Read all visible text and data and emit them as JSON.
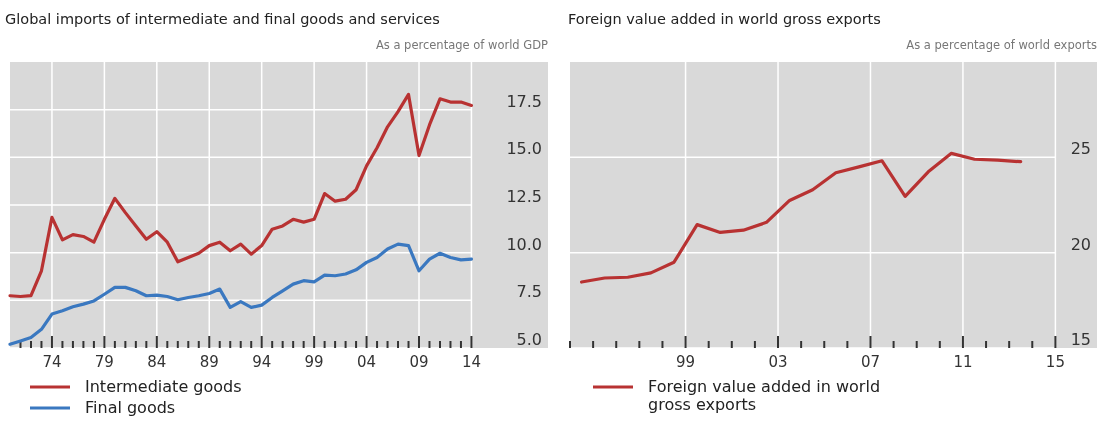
{
  "chart_data": [
    {
      "type": "line",
      "title": "Global imports of intermediate and final goods and services",
      "subtitle": "As a percentage of world GDP",
      "x": [
        1970,
        1971,
        1972,
        1973,
        1974,
        1975,
        1976,
        1977,
        1978,
        1979,
        1980,
        1981,
        1982,
        1983,
        1984,
        1985,
        1986,
        1987,
        1988,
        1989,
        1990,
        1991,
        1992,
        1993,
        1994,
        1995,
        1996,
        1997,
        1998,
        1999,
        2000,
        2001,
        2002,
        2003,
        2004,
        2005,
        2006,
        2007,
        2008,
        2009,
        2010,
        2011,
        2012,
        2013,
        2014
      ],
      "series": [
        {
          "name": "Intermediate goods",
          "color": "#b83232",
          "values": [
            7.74,
            7.7,
            7.75,
            9.05,
            11.85,
            10.67,
            10.95,
            10.85,
            10.55,
            11.75,
            12.85,
            12.1,
            11.4,
            10.7,
            11.1,
            10.55,
            9.52,
            9.75,
            9.97,
            10.37,
            10.55,
            10.1,
            10.45,
            9.92,
            10.37,
            11.23,
            11.4,
            11.75,
            11.6,
            11.75,
            13.1,
            12.7,
            12.8,
            13.3,
            14.55,
            15.5,
            16.6,
            17.4,
            18.3,
            15.1,
            16.7,
            18.07,
            17.9,
            17.9,
            17.72
          ]
        },
        {
          "name": "Final goods",
          "color": "#3a78c0",
          "values": [
            5.2,
            5.37,
            5.55,
            5.98,
            6.78,
            6.95,
            7.16,
            7.3,
            7.47,
            7.82,
            8.18,
            8.18,
            8.0,
            7.74,
            7.77,
            7.7,
            7.53,
            7.65,
            7.74,
            7.86,
            8.09,
            7.13,
            7.43,
            7.13,
            7.25,
            7.65,
            8.0,
            8.35,
            8.53,
            8.47,
            8.82,
            8.79,
            8.88,
            9.1,
            9.49,
            9.75,
            10.19,
            10.45,
            10.37,
            9.05,
            9.66,
            9.97,
            9.75,
            9.62,
            9.66
          ]
        }
      ],
      "xlim": [
        1970,
        2021.3
      ],
      "ylim": [
        5,
        20
      ],
      "xticks": [
        {
          "value": 1971,
          "label": null
        },
        {
          "value": 1972,
          "label": null
        },
        {
          "value": 1973,
          "label": null
        },
        {
          "value": 1974,
          "label": "74"
        },
        {
          "value": 1975,
          "label": null
        },
        {
          "value": 1976,
          "label": null
        },
        {
          "value": 1977,
          "label": null
        },
        {
          "value": 1978,
          "label": null
        },
        {
          "value": 1979,
          "label": "79"
        },
        {
          "value": 1980,
          "label": null
        },
        {
          "value": 1981,
          "label": null
        },
        {
          "value": 1982,
          "label": null
        },
        {
          "value": 1983,
          "label": null
        },
        {
          "value": 1984,
          "label": "84"
        },
        {
          "value": 1985,
          "label": null
        },
        {
          "value": 1986,
          "label": null
        },
        {
          "value": 1987,
          "label": null
        },
        {
          "value": 1988,
          "label": null
        },
        {
          "value": 1989,
          "label": "89"
        },
        {
          "value": 1990,
          "label": null
        },
        {
          "value": 1991,
          "label": null
        },
        {
          "value": 1992,
          "label": null
        },
        {
          "value": 1993,
          "label": null
        },
        {
          "value": 1994,
          "label": "94"
        },
        {
          "value": 1995,
          "label": null
        },
        {
          "value": 1996,
          "label": null
        },
        {
          "value": 1997,
          "label": null
        },
        {
          "value": 1998,
          "label": null
        },
        {
          "value": 1999,
          "label": "99"
        },
        {
          "value": 2000,
          "label": null
        },
        {
          "value": 2001,
          "label": null
        },
        {
          "value": 2002,
          "label": null
        },
        {
          "value": 2003,
          "label": null
        },
        {
          "value": 2004,
          "label": "04"
        },
        {
          "value": 2005,
          "label": null
        },
        {
          "value": 2006,
          "label": null
        },
        {
          "value": 2007,
          "label": null
        },
        {
          "value": 2008,
          "label": null
        },
        {
          "value": 2009,
          "label": "09"
        },
        {
          "value": 2010,
          "label": null
        },
        {
          "value": 2011,
          "label": null
        },
        {
          "value": 2012,
          "label": null
        },
        {
          "value": 2013,
          "label": null
        },
        {
          "value": 2014,
          "label": "14"
        }
      ],
      "yticks": [
        {
          "value": 5,
          "label": "5.0"
        },
        {
          "value": 7.5,
          "label": "7.5"
        },
        {
          "value": 10,
          "label": "10.0"
        },
        {
          "value": 12.5,
          "label": "12.5"
        },
        {
          "value": 15,
          "label": "15.0"
        },
        {
          "value": 17.5,
          "label": "17.5"
        }
      ],
      "grid": true,
      "legend": "bottom",
      "line_style": "solid"
    },
    {
      "type": "line",
      "title": "Foreign value added in world gross exports",
      "subtitle": "As a percentage of world exports",
      "x": [
        1994.5,
        1995.5,
        1996.5,
        1997.5,
        1998.5,
        1999.5,
        2000.5,
        2001.5,
        2002.5,
        2003.5,
        2004.5,
        2005.5,
        2006.5,
        2007.5,
        2008.5,
        2009.5,
        2010.5,
        2011.5,
        2012.5,
        2013.5
      ],
      "series": [
        {
          "name": "Foreign value added in world gross exports",
          "color": "#b83232",
          "values": [
            18.46,
            18.67,
            18.71,
            18.94,
            19.5,
            21.47,
            21.06,
            21.18,
            21.59,
            22.74,
            23.3,
            24.19,
            24.5,
            24.82,
            22.95,
            24.24,
            25.21,
            24.9,
            24.85,
            24.77
          ]
        }
      ],
      "xlim": [
        1994,
        2016.8
      ],
      "ylim": [
        15,
        30
      ],
      "xticks": [
        {
          "value": 1994,
          "label": null
        },
        {
          "value": 1995,
          "label": null
        },
        {
          "value": 1996,
          "label": null
        },
        {
          "value": 1997,
          "label": null
        },
        {
          "value": 1998,
          "label": null
        },
        {
          "value": 1999,
          "label": "99"
        },
        {
          "value": 2000,
          "label": null
        },
        {
          "value": 2001,
          "label": null
        },
        {
          "value": 2002,
          "label": null
        },
        {
          "value": 2003,
          "label": "03"
        },
        {
          "value": 2004,
          "label": null
        },
        {
          "value": 2005,
          "label": null
        },
        {
          "value": 2006,
          "label": null
        },
        {
          "value": 2007,
          "label": "07"
        },
        {
          "value": 2008,
          "label": null
        },
        {
          "value": 2009,
          "label": null
        },
        {
          "value": 2010,
          "label": null
        },
        {
          "value": 2011,
          "label": "11"
        },
        {
          "value": 2012,
          "label": null
        },
        {
          "value": 2013,
          "label": null
        },
        {
          "value": 2014,
          "label": null
        },
        {
          "value": 2015,
          "label": "15"
        }
      ],
      "yticks": [
        15,
        20,
        25
      ],
      "grid": true,
      "legend": "bottom",
      "line_style": "solid"
    }
  ]
}
